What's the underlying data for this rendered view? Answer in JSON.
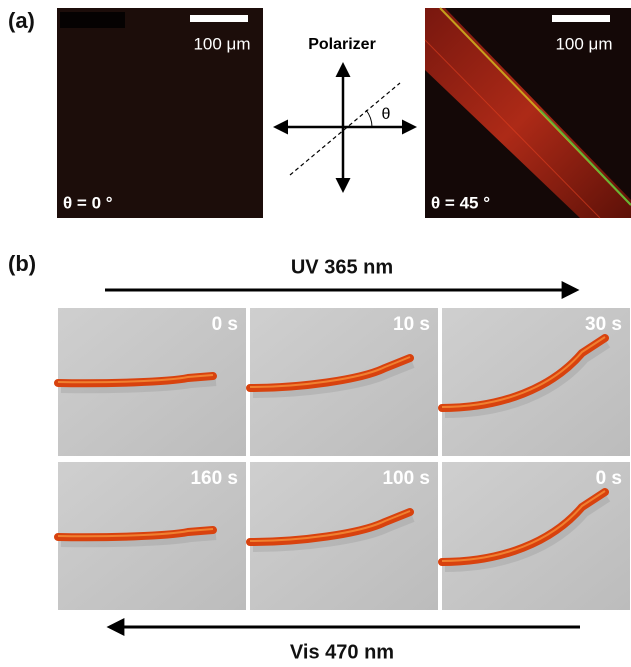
{
  "panel_a": {
    "label": "(a)",
    "images": [
      {
        "scale_bar": "100 μm",
        "angle": "θ = 0 °"
      },
      {
        "scale_bar": "100 μm",
        "angle": "θ = 45 °"
      }
    ],
    "diagram": {
      "title": "Polarizer",
      "angle_symbol": "θ"
    }
  },
  "panel_b": {
    "label": "(b)",
    "top_arrow": "UV 365 nm",
    "bottom_arrow": "Vis 470 nm",
    "frames": [
      [
        "0 s",
        "10 s",
        "30 s"
      ],
      [
        "160 s",
        "100 s",
        "0 s"
      ]
    ]
  }
}
